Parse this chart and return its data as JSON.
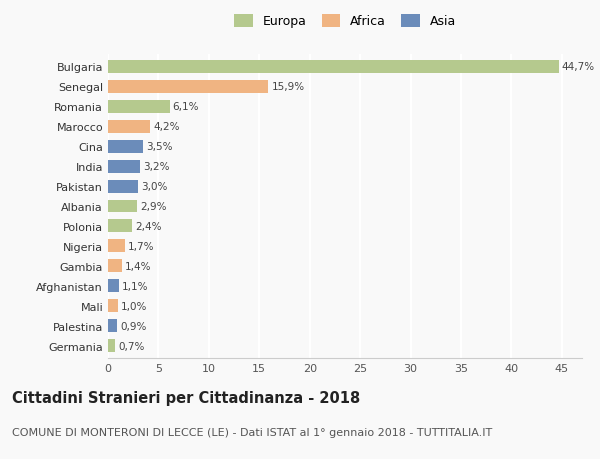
{
  "categories": [
    "Bulgaria",
    "Senegal",
    "Romania",
    "Marocco",
    "Cina",
    "India",
    "Pakistan",
    "Albania",
    "Polonia",
    "Nigeria",
    "Gambia",
    "Afghanistan",
    "Mali",
    "Palestina",
    "Germania"
  ],
  "values": [
    44.7,
    15.9,
    6.1,
    4.2,
    3.5,
    3.2,
    3.0,
    2.9,
    2.4,
    1.7,
    1.4,
    1.1,
    1.0,
    0.9,
    0.7
  ],
  "labels": [
    "44,7%",
    "15,9%",
    "6,1%",
    "4,2%",
    "3,5%",
    "3,2%",
    "3,0%",
    "2,9%",
    "2,4%",
    "1,7%",
    "1,4%",
    "1,1%",
    "1,0%",
    "0,9%",
    "0,7%"
  ],
  "continents": [
    "Europa",
    "Africa",
    "Europa",
    "Africa",
    "Asia",
    "Asia",
    "Asia",
    "Europa",
    "Europa",
    "Africa",
    "Africa",
    "Asia",
    "Africa",
    "Asia",
    "Europa"
  ],
  "colors": {
    "Europa": "#b5c98e",
    "Africa": "#f0b482",
    "Asia": "#6b8cba"
  },
  "title": "Cittadini Stranieri per Cittadinanza - 2018",
  "subtitle": "COMUNE DI MONTERONI DI LECCE (LE) - Dati ISTAT al 1° gennaio 2018 - TUTTITALIA.IT",
  "xlim": [
    0,
    47
  ],
  "xticks": [
    0,
    5,
    10,
    15,
    20,
    25,
    30,
    35,
    40,
    45
  ],
  "background_color": "#f9f9f9",
  "grid_color": "#ffffff",
  "bar_height": 0.65,
  "title_fontsize": 10.5,
  "subtitle_fontsize": 8,
  "label_fontsize": 7.5,
  "tick_fontsize": 8,
  "legend_fontsize": 9
}
